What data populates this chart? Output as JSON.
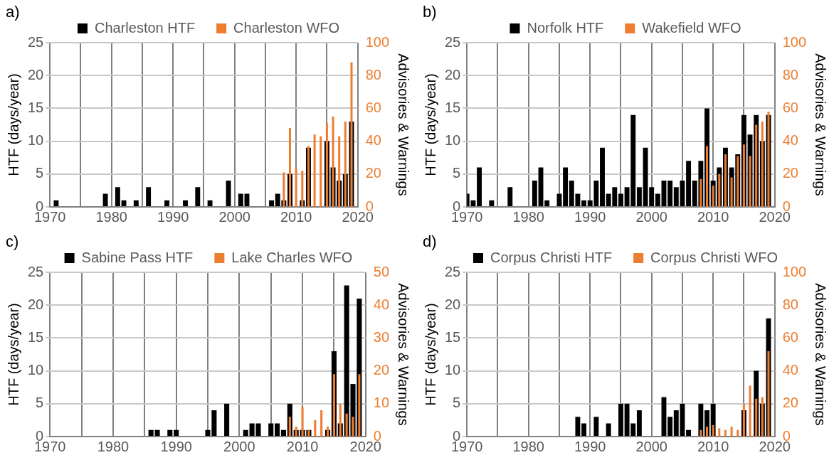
{
  "chart_data": [
    {
      "type": "bar",
      "title": "a)",
      "ylabel": "HTF (days/year)",
      "y2label": "Advisories & Warnings",
      "legend": "top",
      "grid": true,
      "xlim": [
        1970,
        2020
      ],
      "xticks": [
        1970,
        {
          "value": 1975,
          "label": null
        },
        1980,
        {
          "value": 1985,
          "label": null
        },
        1990,
        {
          "value": 1995,
          "label": null
        },
        2000,
        {
          "value": 2005,
          "label": null
        },
        2010,
        {
          "value": 2015,
          "label": null
        },
        2020
      ],
      "ylim": [
        0,
        25
      ],
      "yticks": [
        0,
        5,
        10,
        15,
        20,
        25
      ],
      "y2lim": [
        0,
        100
      ],
      "y2ticks": [
        0,
        20,
        40,
        60,
        80,
        100
      ],
      "series": [
        {
          "name": "Charleston HTF",
          "color": "#000000",
          "x": [
            1971,
            1979,
            1981,
            1982,
            1984,
            1986,
            1989,
            1992,
            1994,
            1996,
            1999,
            2001,
            2002,
            2006,
            2007,
            2008,
            2009,
            2011,
            2012,
            2015,
            2016,
            2017,
            2018,
            2019
          ],
          "values": [
            1,
            2,
            3,
            1,
            1,
            3,
            1,
            1,
            3,
            1,
            4,
            2,
            2,
            1,
            2,
            1,
            5,
            1,
            9,
            10,
            6,
            4,
            5,
            13
          ]
        },
        {
          "name": "Charleston WFO",
          "color": "#ed7d31",
          "axis": "y2",
          "x": [
            2008,
            2009,
            2010,
            2011,
            2012,
            2013,
            2014,
            2015,
            2016,
            2017,
            2018,
            2019
          ],
          "values": [
            21,
            48,
            23,
            22,
            37,
            44,
            43,
            51,
            55,
            43,
            52,
            88
          ]
        }
      ]
    },
    {
      "type": "bar",
      "title": "b)",
      "ylabel": "HTF (days/year)",
      "y2label": "Advisories & Warnings",
      "legend": "top",
      "grid": true,
      "xlim": [
        1970,
        2020
      ],
      "xticks": [
        1970,
        {
          "value": 1975,
          "label": null
        },
        1980,
        {
          "value": 1985,
          "label": null
        },
        1990,
        {
          "value": 1995,
          "label": null
        },
        2000,
        {
          "value": 2005,
          "label": null
        },
        2010,
        {
          "value": 2015,
          "label": null
        },
        2020
      ],
      "ylim": [
        0,
        25
      ],
      "yticks": [
        0,
        5,
        10,
        15,
        20,
        25
      ],
      "y2lim": [
        0,
        100
      ],
      "y2ticks": [
        0,
        20,
        40,
        60,
        80,
        100
      ],
      "series": [
        {
          "name": "Norfolk HTF",
          "color": "#000000",
          "x": [
            1970,
            1971,
            1972,
            1974,
            1977,
            1981,
            1982,
            1983,
            1985,
            1986,
            1987,
            1988,
            1989,
            1990,
            1991,
            1992,
            1993,
            1994,
            1995,
            1996,
            1997,
            1998,
            1999,
            2000,
            2001,
            2002,
            2003,
            2004,
            2005,
            2006,
            2007,
            2008,
            2009,
            2010,
            2011,
            2012,
            2013,
            2014,
            2015,
            2016,
            2017,
            2018,
            2019
          ],
          "values": [
            2,
            1,
            6,
            1,
            3,
            4,
            6,
            1,
            2,
            6,
            4,
            2,
            1,
            1,
            4,
            9,
            2,
            3,
            2,
            3,
            14,
            3,
            9,
            3,
            2,
            4,
            4,
            3,
            4,
            7,
            4,
            7,
            15,
            4,
            6,
            9,
            6,
            8,
            14,
            11,
            14,
            10,
            14
          ]
        },
        {
          "name": "Wakefield WFO",
          "color": "#ed7d31",
          "axis": "y2",
          "x": [
            2008,
            2009,
            2010,
            2011,
            2012,
            2013,
            2014,
            2015,
            2016,
            2017,
            2018,
            2019
          ],
          "values": [
            17,
            37,
            13,
            20,
            32,
            18,
            31,
            38,
            31,
            50,
            52,
            58
          ]
        }
      ]
    },
    {
      "type": "bar",
      "title": "c)",
      "ylabel": "HTF (days/year)",
      "y2label": "Advisories & Warnings",
      "legend": "top",
      "grid": true,
      "xlim": [
        1970,
        2020
      ],
      "xticks": [
        1970,
        {
          "value": 1975,
          "label": null
        },
        1980,
        {
          "value": 1985,
          "label": null
        },
        1990,
        {
          "value": 1995,
          "label": null
        },
        2000,
        {
          "value": 2005,
          "label": null
        },
        2010,
        {
          "value": 2015,
          "label": null
        },
        2020
      ],
      "ylim": [
        0,
        25
      ],
      "yticks": [
        0,
        5,
        10,
        15,
        20,
        25
      ],
      "y2lim": [
        0,
        50
      ],
      "y2ticks": [
        0,
        10,
        20,
        30,
        40,
        50
      ],
      "series": [
        {
          "name": "Sabine Pass HTF",
          "color": "#000000",
          "x": [
            1986,
            1987,
            1989,
            1990,
            1995,
            1996,
            1998,
            2001,
            2002,
            2003,
            2005,
            2006,
            2007,
            2008,
            2009,
            2010,
            2011,
            2014,
            2015,
            2016,
            2017,
            2018,
            2019
          ],
          "values": [
            1,
            1,
            1,
            1,
            1,
            4,
            5,
            1,
            2,
            2,
            2,
            2,
            1,
            5,
            1,
            1,
            1,
            1,
            13,
            2,
            23,
            8,
            21
          ]
        },
        {
          "name": "Lake Charles WFO",
          "color": "#ed7d31",
          "axis": "y2",
          "x": [
            2008,
            2009,
            2010,
            2011,
            2012,
            2013,
            2014,
            2015,
            2016,
            2017,
            2018,
            2019
          ],
          "values": [
            6,
            3,
            9,
            2,
            5,
            8,
            3,
            19,
            10,
            7,
            6,
            19
          ]
        }
      ]
    },
    {
      "type": "bar",
      "title": "d)",
      "ylabel": "HTF (days/year)",
      "y2label": "Advisories & Warnings",
      "legend": "top",
      "grid": true,
      "xlim": [
        1970,
        2020
      ],
      "xticks": [
        1970,
        {
          "value": 1975,
          "label": null
        },
        1980,
        {
          "value": 1985,
          "label": null
        },
        1990,
        {
          "value": 1995,
          "label": null
        },
        2000,
        {
          "value": 2005,
          "label": null
        },
        2010,
        {
          "value": 2015,
          "label": null
        },
        2020
      ],
      "ylim": [
        0,
        25
      ],
      "yticks": [
        0,
        5,
        10,
        15,
        20,
        25
      ],
      "y2lim": [
        0,
        100
      ],
      "y2ticks": [
        0,
        20,
        40,
        60,
        80,
        100
      ],
      "series": [
        {
          "name": "Corpus Christi HTF",
          "color": "#000000",
          "x": [
            1988,
            1989,
            1991,
            1993,
            1995,
            1996,
            1997,
            1998,
            2002,
            2003,
            2004,
            2005,
            2006,
            2008,
            2009,
            2010,
            2015,
            2017,
            2018,
            2019
          ],
          "values": [
            3,
            2,
            3,
            2,
            5,
            5,
            2,
            4,
            6,
            3,
            4,
            5,
            1,
            5,
            4,
            5,
            4,
            10,
            5,
            18
          ]
        },
        {
          "name": "Corpus Christi WFO",
          "color": "#ed7d31",
          "axis": "y2",
          "x": [
            2008,
            2009,
            2010,
            2011,
            2012,
            2013,
            2014,
            2015,
            2016,
            2017,
            2018,
            2019
          ],
          "values": [
            4,
            6,
            7,
            5,
            4,
            6,
            4,
            20,
            31,
            23,
            24,
            52
          ]
        }
      ]
    }
  ]
}
